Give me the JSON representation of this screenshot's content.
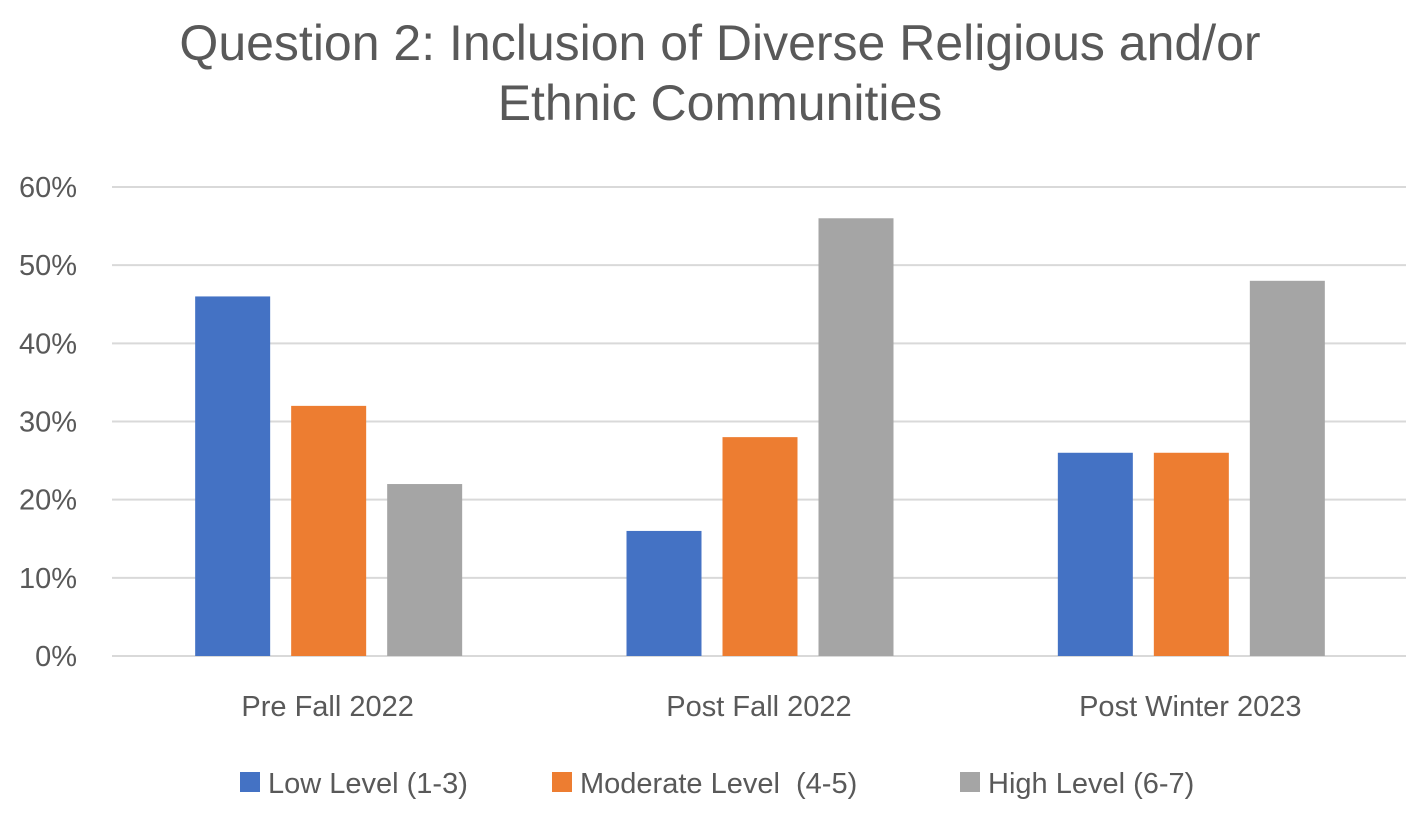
{
  "chart_data": {
    "type": "bar",
    "title_lines": [
      "Question 2: Inclusion of Diverse Religious and/or",
      "Ethnic Communities"
    ],
    "categories": [
      "Pre Fall 2022",
      "Post Fall 2022",
      "Post Winter 2023"
    ],
    "series": [
      {
        "name": "Low Level (1-3)",
        "color": "#4472C4",
        "values": [
          46,
          16,
          26
        ]
      },
      {
        "name": "Moderate Level  (4-5)",
        "color": "#ED7D31",
        "values": [
          32,
          28,
          26
        ]
      },
      {
        "name": "High Level (6-7)",
        "color": "#A5A5A5",
        "values": [
          22,
          56,
          48
        ]
      }
    ],
    "y_ticks": [
      0,
      10,
      20,
      30,
      40,
      50,
      60
    ],
    "y_tick_labels": [
      "0%",
      "10%",
      "20%",
      "30%",
      "40%",
      "50%",
      "60%"
    ],
    "ylim": [
      0,
      60
    ],
    "grid": true,
    "gridline_color": "#D9D9D9",
    "legend_position": "bottom",
    "xlabel": "",
    "ylabel": ""
  }
}
